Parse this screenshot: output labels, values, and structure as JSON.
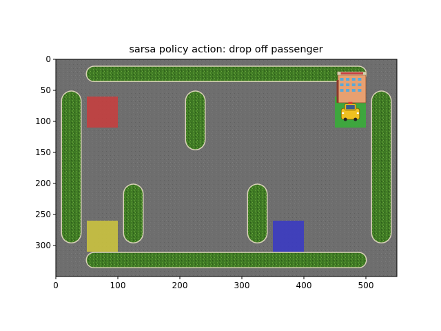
{
  "title": "sarsa policy action: drop off passenger",
  "axes": {
    "xlim": [
      0,
      550
    ],
    "ylim": [
      350,
      0
    ],
    "xticks": [
      0,
      100,
      200,
      300,
      400,
      500
    ],
    "yticks": [
      0,
      50,
      100,
      150,
      200,
      250,
      300
    ]
  },
  "colors": {
    "road": "#6e6e6e",
    "grass": "#3f7a24",
    "curb": "#d8d2b8",
    "red_loc": "#c24040",
    "yellow_loc": "#c8c040",
    "blue_loc": "#3c3cc0",
    "green_loc": "#3aaa3a"
  },
  "scene": {
    "locations": [
      {
        "name": "red",
        "color_key": "red_loc",
        "x0": 50,
        "y0": 60,
        "x1": 100,
        "y1": 110
      },
      {
        "name": "green",
        "color_key": "green_loc",
        "x0": 450,
        "y0": 60,
        "x1": 500,
        "y1": 110
      },
      {
        "name": "yellow",
        "color_key": "yellow_loc",
        "x0": 50,
        "y0": 260,
        "x1": 100,
        "y1": 310
      },
      {
        "name": "blue",
        "color_key": "blue_loc",
        "x0": 350,
        "y0": 260,
        "x1": 400,
        "y1": 310
      }
    ],
    "hedges": [
      {
        "x0": 50,
        "y0": 12,
        "x1": 500,
        "y1": 35
      },
      {
        "x0": 50,
        "y0": 312,
        "x1": 500,
        "y1": 335
      },
      {
        "x0": 10,
        "y0": 52,
        "x1": 40,
        "y1": 295
      },
      {
        "x0": 510,
        "y0": 52,
        "x1": 540,
        "y1": 295
      },
      {
        "x0": 210,
        "y0": 52,
        "x1": 240,
        "y1": 145
      },
      {
        "x0": 110,
        "y0": 202,
        "x1": 140,
        "y1": 295
      },
      {
        "x0": 310,
        "y0": 202,
        "x1": 340,
        "y1": 295
      }
    ],
    "hotel": {
      "x0": 455,
      "y0": 20,
      "x1": 500,
      "y1": 70
    },
    "taxi": {
      "x0": 458,
      "y0": 68,
      "x1": 492,
      "y1": 100
    }
  }
}
